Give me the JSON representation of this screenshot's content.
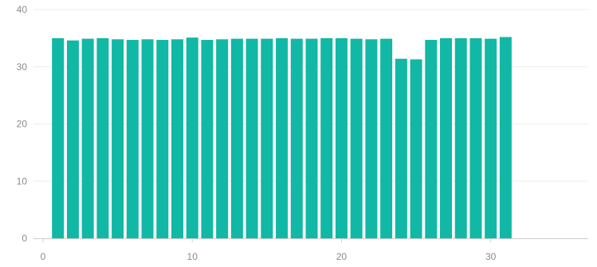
{
  "chart_data": {
    "type": "bar",
    "x": [
      1,
      2,
      3,
      4,
      5,
      6,
      7,
      8,
      9,
      10,
      11,
      12,
      13,
      14,
      15,
      16,
      17,
      18,
      19,
      20,
      21,
      22,
      23,
      24,
      25,
      26,
      27,
      28,
      29,
      30,
      31
    ],
    "values": [
      35.0,
      34.6,
      34.9,
      35.0,
      34.8,
      34.7,
      34.8,
      34.7,
      34.8,
      35.1,
      34.7,
      34.8,
      34.9,
      34.9,
      34.9,
      35.0,
      34.9,
      34.9,
      35.0,
      35.0,
      34.9,
      34.8,
      34.9,
      31.4,
      31.3,
      34.7,
      35.0,
      35.0,
      35.0,
      34.9,
      35.2
    ],
    "xlim": [
      0,
      36
    ],
    "ylim": [
      0,
      40
    ],
    "x_ticks": [
      "0",
      "10",
      "20",
      "30"
    ],
    "y_ticks": [
      "0",
      "10",
      "20",
      "30",
      "40"
    ],
    "grid": "horizontal",
    "bar_color": "#11b8a5"
  }
}
